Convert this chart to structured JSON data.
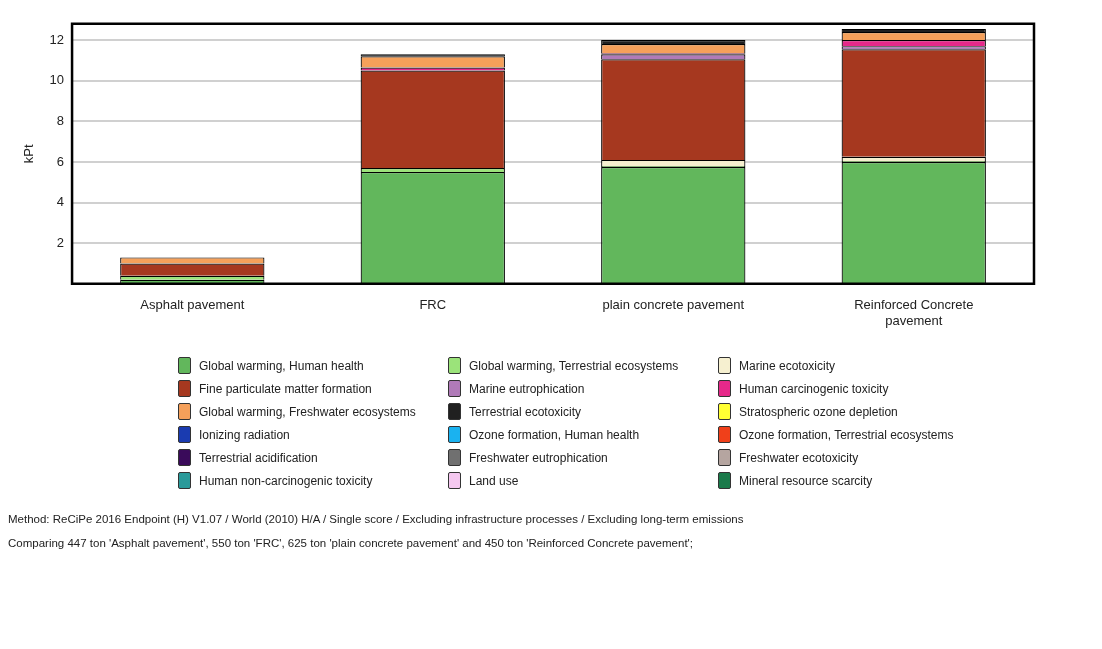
{
  "chart_data": {
    "type": "bar",
    "ylabel": "kPt",
    "categories": [
      "Asphalt pavement",
      "FRC",
      "plain concrete pavement",
      "Reinforced Concrete pavement"
    ],
    "stacked": true,
    "ylim": [
      0,
      12.8
    ],
    "yticks": [
      2,
      4,
      6,
      8,
      10,
      12
    ],
    "grid": "y",
    "legend": "bottom",
    "series": [
      {
        "name": "Global warming, Human health",
        "color": "#62b75c",
        "values": [
          0.2,
          5.5,
          5.75,
          6.0
        ]
      },
      {
        "name": "Global warming, Terrestrial ecosystems",
        "color": "#9be37a",
        "values": [
          0.2,
          0.2,
          0.05,
          0.05
        ]
      },
      {
        "name": "Marine ecotoxicity",
        "color": "#f6f0d0",
        "values": [
          0,
          0,
          0.3,
          0.2
        ]
      },
      {
        "name": "Fine particulate matter formation",
        "color": "#a6381f",
        "values": [
          0.6,
          4.8,
          4.95,
          5.3
        ]
      },
      {
        "name": "Marine eutrophication",
        "color": "#b07ab8",
        "values": [
          0,
          0,
          0.25,
          0.15
        ]
      },
      {
        "name": "Human carcinogenic toxicity",
        "color": "#e6288a",
        "values": [
          0,
          0.15,
          0.05,
          0.3
        ]
      },
      {
        "name": "Global warming, Freshwater ecosystems",
        "color": "#f5a05a",
        "values": [
          0.3,
          0.55,
          0.45,
          0.4
        ]
      },
      {
        "name": "Terrestrial ecotoxicity",
        "color": "#202020",
        "values": [
          0,
          0.1,
          0.2,
          0.15
        ]
      },
      {
        "name": "Stratospheric ozone depletion",
        "color": "#ffff33",
        "values": [
          0,
          0,
          0,
          0
        ]
      },
      {
        "name": "Ionizing radiation",
        "color": "#1a3bb0",
        "values": [
          0,
          0,
          0,
          0
        ]
      },
      {
        "name": "Ozone formation, Human health",
        "color": "#1ab2f0",
        "values": [
          0,
          0,
          0,
          0
        ]
      },
      {
        "name": "Ozone formation, Terrestrial ecosystems",
        "color": "#f0401a",
        "values": [
          0,
          0,
          0,
          0
        ]
      },
      {
        "name": "Terrestrial acidification",
        "color": "#3a0a5a",
        "values": [
          0,
          0,
          0,
          0
        ]
      },
      {
        "name": "Freshwater eutrophication",
        "color": "#707070",
        "values": [
          0,
          0,
          0,
          0
        ]
      },
      {
        "name": "Freshwater ecotoxicity",
        "color": "#b5a5a0",
        "values": [
          0,
          0,
          0,
          0
        ]
      },
      {
        "name": "Human non-carcinogenic toxicity",
        "color": "#2a9a9a",
        "values": [
          0,
          0,
          0,
          0
        ]
      },
      {
        "name": "Land use",
        "color": "#f5c8f0",
        "values": [
          0,
          0,
          0,
          0
        ]
      },
      {
        "name": "Mineral resource scarcity",
        "color": "#1a7a4a",
        "values": [
          0,
          0,
          0,
          0
        ]
      }
    ],
    "annotations": [
      "Method: ReCiPe 2016 Endpoint (H) V1.07 / World (2010) H/A / Single score / Excluding infrastructure processes / Excluding long-term emissions",
      "Comparing 447 ton 'Asphalt pavement', 550 ton 'FRC', 625 ton 'plain concrete pavement' and 450 ton 'Reinforced Concrete pavement';"
    ]
  }
}
